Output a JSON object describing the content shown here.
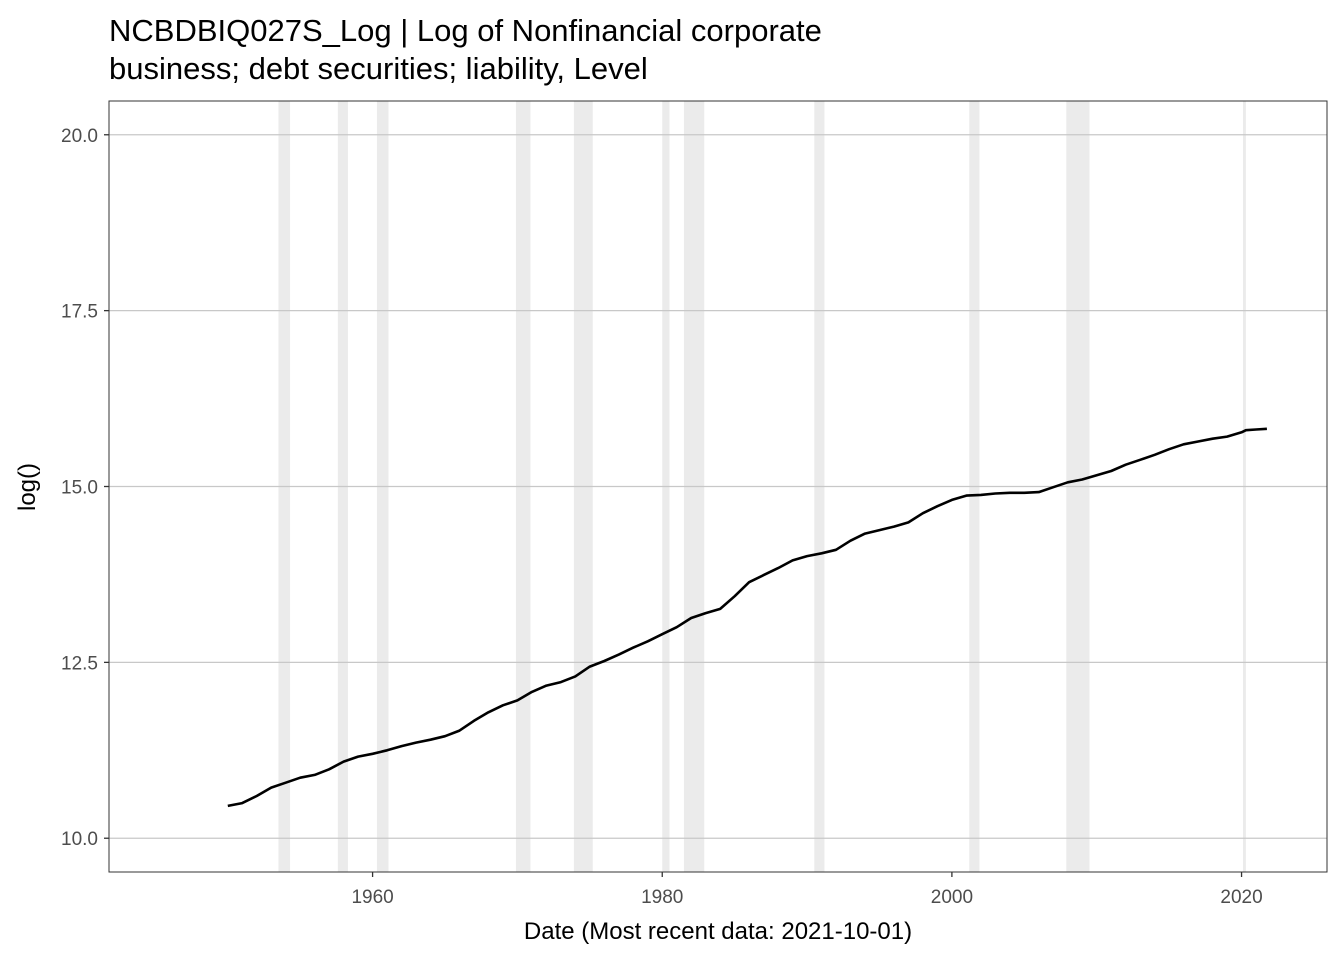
{
  "chart_data": {
    "type": "line",
    "title": [
      "NCBDBIQ027S_Log | Log of Nonfinancial corporate",
      "business; debt securities; liability, Level"
    ],
    "xlabel": "Date (Most recent data: 2021-10-01)",
    "ylabel": "log()",
    "xlim": [
      1941.8,
      2025.9
    ],
    "ylim": [
      9.52,
      20.48
    ],
    "x_ticks": [
      1960,
      1980,
      2000,
      2020
    ],
    "x_tick_labels": [
      "1960",
      "1980",
      "2000",
      "2020"
    ],
    "y_ticks": [
      10.0,
      12.5,
      15.0,
      17.5,
      20.0
    ],
    "y_tick_labels": [
      "10.0",
      "12.5",
      "15.0",
      "17.5",
      "20.0"
    ],
    "grid": true,
    "recession_shading": [
      [
        1953.5,
        1954.3
      ],
      [
        1957.6,
        1958.3
      ],
      [
        1960.3,
        1961.1
      ],
      [
        1969.9,
        1970.9
      ],
      [
        1973.9,
        1975.2
      ],
      [
        1980.0,
        1980.5
      ],
      [
        1981.5,
        1982.9
      ],
      [
        1990.5,
        1991.2
      ],
      [
        2001.2,
        2001.9
      ],
      [
        2007.9,
        2009.5
      ],
      [
        2020.1,
        2020.3
      ]
    ],
    "series": [
      {
        "x": [
          1950.0,
          1951.0,
          1952.0,
          1953.0,
          1954.0,
          1955.0,
          1956.0,
          1957.0,
          1958.0,
          1959.0,
          1960.0,
          1961.0,
          1962.0,
          1963.0,
          1964.0,
          1965.0,
          1966.0,
          1967.0,
          1968.0,
          1969.0,
          1970.0,
          1971.0,
          1972.0,
          1973.0,
          1974.0,
          1975.0,
          1976.0,
          1977.0,
          1978.0,
          1979.0,
          1980.0,
          1981.0,
          1982.0,
          1983.0,
          1984.0,
          1985.0,
          1986.0,
          1987.0,
          1988.0,
          1989.0,
          1990.0,
          1991.0,
          1992.0,
          1993.0,
          1994.0,
          1995.0,
          1996.0,
          1997.0,
          1998.0,
          1999.0,
          2000.0,
          2001.0,
          2002.0,
          2003.0,
          2004.0,
          2005.0,
          2006.0,
          2007.0,
          2008.0,
          2009.0,
          2010.0,
          2011.0,
          2012.0,
          2013.0,
          2014.0,
          2015.0,
          2016.0,
          2017.0,
          2018.0,
          2019.0,
          2020.0,
          2020.3,
          2021.0,
          2021.75
        ],
        "values": [
          10.46,
          10.5,
          10.6,
          10.72,
          10.79,
          10.86,
          10.9,
          10.98,
          11.09,
          11.16,
          11.2,
          11.25,
          11.31,
          11.36,
          11.4,
          11.45,
          11.53,
          11.67,
          11.79,
          11.89,
          11.96,
          12.08,
          12.17,
          12.22,
          12.3,
          12.44,
          12.52,
          12.61,
          12.71,
          12.8,
          12.9,
          13.0,
          13.13,
          13.2,
          13.26,
          13.44,
          13.64,
          13.74,
          13.84,
          13.95,
          14.01,
          14.05,
          14.1,
          14.23,
          14.33,
          14.38,
          14.43,
          14.49,
          14.62,
          14.72,
          14.81,
          14.87,
          14.88,
          14.9,
          14.91,
          14.91,
          14.92,
          14.99,
          15.06,
          15.1,
          15.16,
          15.22,
          15.31,
          15.38,
          15.45,
          15.53,
          15.6,
          15.64,
          15.68,
          15.71,
          15.77,
          15.8,
          15.81,
          15.82
        ]
      }
    ]
  }
}
